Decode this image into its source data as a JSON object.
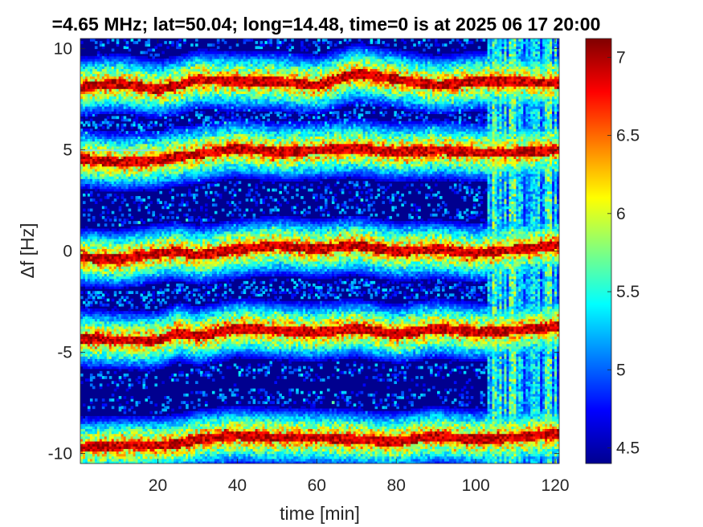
{
  "chart_data": {
    "type": "heatmap",
    "title": "=4.65 MHz;  lat=50.04; long=14.48, time=0 is at 2025 06 17 20:00",
    "xlabel": "time [min]",
    "ylabel": "Δf [Hz]",
    "xlim": [
      0.5,
      121
    ],
    "ylim": [
      -10.5,
      10.5
    ],
    "x_ticks": [
      20,
      40,
      60,
      80,
      100,
      120
    ],
    "y_ticks": [
      10,
      5,
      0,
      -5,
      -10
    ],
    "colorbar": {
      "colormap": "jet",
      "range": [
        4.4,
        7.12
      ],
      "ticks": [
        7,
        6.5,
        6,
        5.5,
        5,
        4.5
      ]
    },
    "background_level": 4.45,
    "series": [
      {
        "name": "",
        "x": [
          0,
          10,
          20,
          25,
          30,
          40,
          50,
          60,
          70,
          80,
          90,
          100,
          110,
          121
        ],
        "y": [
          8.1,
          8.3,
          8.0,
          8.2,
          8.5,
          8.4,
          8.4,
          8.2,
          8.8,
          8.5,
          8.2,
          8.4,
          8.4,
          8.3
        ]
      },
      {
        "name": "",
        "x": [
          0,
          10,
          20,
          25,
          30,
          40,
          50,
          60,
          70,
          80,
          90,
          100,
          110,
          121
        ],
        "y": [
          4.6,
          4.4,
          4.5,
          4.7,
          4.8,
          5.1,
          4.9,
          5.0,
          5.1,
          4.9,
          5.0,
          4.9,
          4.9,
          5.0
        ]
      },
      {
        "name": "",
        "x": [
          0,
          10,
          20,
          25,
          30,
          40,
          50,
          60,
          70,
          80,
          90,
          100,
          110,
          121
        ],
        "y": [
          -0.3,
          -0.4,
          -0.1,
          0.0,
          -0.2,
          0.1,
          0.3,
          0.1,
          0.3,
          0.0,
          0.1,
          -0.1,
          0.1,
          0.3
        ]
      },
      {
        "name": "",
        "x": [
          0,
          10,
          20,
          25,
          30,
          40,
          50,
          60,
          70,
          80,
          90,
          100,
          110,
          121
        ],
        "y": [
          -4.3,
          -4.4,
          -4.4,
          -4.0,
          -4.2,
          -3.8,
          -3.9,
          -4.0,
          -3.8,
          -4.1,
          -3.8,
          -4.0,
          -3.9,
          -3.7
        ]
      },
      {
        "name": "",
        "x": [
          0,
          10,
          20,
          25,
          30,
          40,
          50,
          60,
          70,
          80,
          90,
          100,
          110,
          121
        ],
        "y": [
          -9.7,
          -9.6,
          -9.6,
          -9.5,
          -9.3,
          -9.1,
          -9.2,
          -9.2,
          -9.3,
          -9.4,
          -9.1,
          -9.3,
          -9.2,
          -9.0
        ]
      }
    ],
    "spur_line": {
      "y": 4.98,
      "x_start": 0,
      "x_end": 20
    },
    "noise_region": {
      "x_start": 103,
      "x_end": 121
    }
  }
}
